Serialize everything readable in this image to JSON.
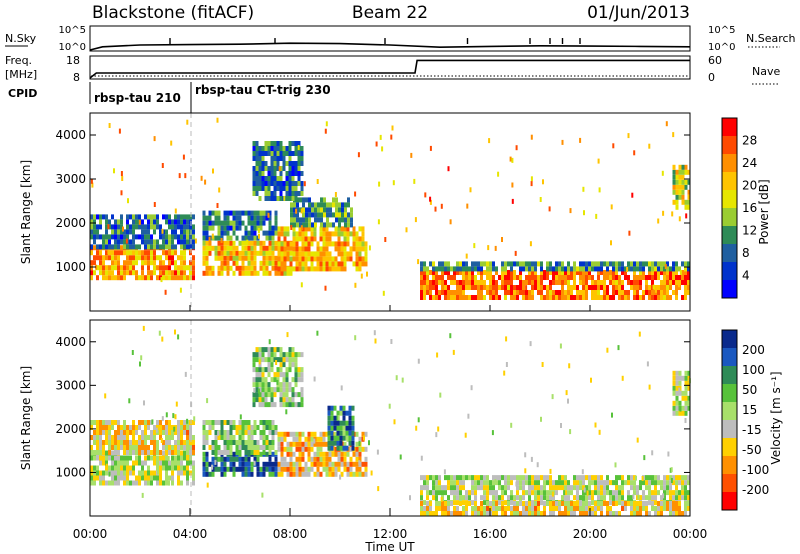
{
  "header": {
    "station": "Blackstone (fitACF)",
    "beam": "Beam 22",
    "date": "01/Jun/2013"
  },
  "top_panel": {
    "left_top": "N.Sky",
    "left_top_scale": [
      "10^5",
      "10^0"
    ],
    "right_top": "N.Search",
    "right_top_scale": [
      "10^5",
      "10^0"
    ],
    "left_mid": "Freq.",
    "left_mid_unit": "[MHz]",
    "left_mid_scale": [
      "18",
      "8"
    ],
    "right_mid": "Nave",
    "right_mid_scale": [
      "60",
      "0"
    ],
    "cpid_label": "CPID",
    "cpid_segments": [
      "rbsp-tau 210",
      "rbsp-tau CT-trig 230"
    ]
  },
  "power_panel": {
    "ylabel": "Slant Range [km]",
    "colorbar_label": "Power [dB]",
    "colorbar_ticks": [
      "28",
      "24",
      "20",
      "16",
      "12",
      "8",
      "4"
    ],
    "colorbar_colors": [
      "#ff0000",
      "#ff4a00",
      "#ff8f00",
      "#ffc400",
      "#e6e600",
      "#9acd32",
      "#2e8b57",
      "#1f5fa0",
      "#0033cc",
      "#0000ff"
    ]
  },
  "velocity_panel": {
    "ylabel": "Slant Range [km]",
    "colorbar_label": "Velocity [m s⁻¹]",
    "colorbar_ticks": [
      "200",
      "100",
      "50",
      "15",
      "-15",
      "-50",
      "-100",
      "-200"
    ],
    "colorbar_colors": [
      "#0a2a8c",
      "#1a58c0",
      "#2e8b57",
      "#57c23a",
      "#a8e06a",
      "#bdbdbd",
      "#ffd000",
      "#ff9000",
      "#ff5000",
      "#ff0000"
    ]
  },
  "x_axis": {
    "label": "Time UT",
    "ticks": [
      "00:00",
      "04:00",
      "08:00",
      "12:00",
      "16:00",
      "20:00",
      "00:00"
    ]
  },
  "chart_data": [
    {
      "type": "line",
      "title": "N.Sky / N.Search",
      "x": [
        "00:00",
        "00:30",
        "02:00",
        "04:00",
        "06:00",
        "08:00",
        "10:00",
        "12:00",
        "14:00",
        "16:00",
        "18:00",
        "20:00",
        "22:00",
        "24:00"
      ],
      "series": [
        {
          "name": "N.Sky",
          "values": [
            1,
            5,
            12,
            15,
            18,
            30,
            25,
            12,
            4,
            6,
            8,
            7,
            6,
            5
          ]
        }
      ],
      "ylim": [
        1,
        100000
      ],
      "yscale": "log"
    },
    {
      "type": "line",
      "title": "Freq. / Nave",
      "x": [
        "00:00",
        "00:15",
        "13:00",
        "13:05",
        "24:00"
      ],
      "series": [
        {
          "name": "Freq.",
          "values": [
            8.0,
            10.5,
            10.5,
            16.8,
            16.8
          ]
        },
        {
          "name": "Nave",
          "values": [
            2,
            2,
            2,
            2,
            2
          ]
        }
      ],
      "ylim": [
        8,
        18
      ]
    },
    {
      "type": "heatmap",
      "title": "Power [dB]",
      "ylabel": "Slant Range [km]",
      "xlabel": "Time UT",
      "x_range_hours": [
        0,
        24
      ],
      "ylim": [
        0,
        4500
      ],
      "yticks": [
        1000,
        2000,
        3000,
        4000
      ],
      "clim": [
        0,
        32
      ],
      "regions": [
        {
          "t0": 0.0,
          "t1": 4.2,
          "r0": 700,
          "r1": 1400,
          "level": 24
        },
        {
          "t0": 0.0,
          "t1": 4.2,
          "r0": 1400,
          "r1": 2100,
          "level": 8
        },
        {
          "t0": 4.5,
          "t1": 8.0,
          "r0": 800,
          "r1": 1500,
          "level": 22
        },
        {
          "t0": 4.5,
          "t1": 7.5,
          "r0": 1600,
          "r1": 2200,
          "level": 8
        },
        {
          "t0": 7.5,
          "t1": 11.0,
          "r0": 900,
          "r1": 1900,
          "level": 22
        },
        {
          "t0": 8.0,
          "t1": 10.5,
          "r0": 1900,
          "r1": 2500,
          "level": 10
        },
        {
          "t0": 6.5,
          "t1": 8.5,
          "r0": 2500,
          "r1": 3800,
          "level": 8
        },
        {
          "t0": 13.2,
          "t1": 24.0,
          "r0": 250,
          "r1": 900,
          "level": 26
        },
        {
          "t0": 13.2,
          "t1": 24.0,
          "r0": 900,
          "r1": 1100,
          "level": 10
        },
        {
          "t0": 23.3,
          "t1": 24.0,
          "r0": 2300,
          "r1": 3300,
          "level": 18
        }
      ]
    },
    {
      "type": "heatmap",
      "title": "Velocity [m s⁻¹]",
      "ylabel": "Slant Range [km]",
      "xlabel": "Time UT",
      "x_range_hours": [
        0,
        24
      ],
      "ylim": [
        0,
        4500
      ],
      "yticks": [
        1000,
        2000,
        3000,
        4000
      ],
      "clim": [
        -250,
        250
      ],
      "regions": [
        {
          "t0": 0.0,
          "t1": 4.2,
          "r0": 700,
          "r1": 1400,
          "level": 0
        },
        {
          "t0": 0.0,
          "t1": 4.2,
          "r0": 1400,
          "r1": 2100,
          "level": -60
        },
        {
          "t0": 4.5,
          "t1": 7.5,
          "r0": 900,
          "r1": 1400,
          "level": 180
        },
        {
          "t0": 4.5,
          "t1": 7.5,
          "r0": 1400,
          "r1": 2200,
          "level": 40
        },
        {
          "t0": 7.5,
          "t1": 11.0,
          "r0": 900,
          "r1": 1900,
          "level": -80
        },
        {
          "t0": 9.5,
          "t1": 10.5,
          "r0": 1500,
          "r1": 2500,
          "level": 150
        },
        {
          "t0": 6.5,
          "t1": 8.5,
          "r0": 2500,
          "r1": 3800,
          "level": 40
        },
        {
          "t0": 13.2,
          "t1": 24.0,
          "r0": 250,
          "r1": 900,
          "level": 0
        },
        {
          "t0": 13.2,
          "t1": 24.0,
          "r0": 0,
          "r1": 250,
          "level": -60
        },
        {
          "t0": 23.3,
          "t1": 24.0,
          "r0": 2300,
          "r1": 3300,
          "level": 0
        }
      ]
    }
  ]
}
